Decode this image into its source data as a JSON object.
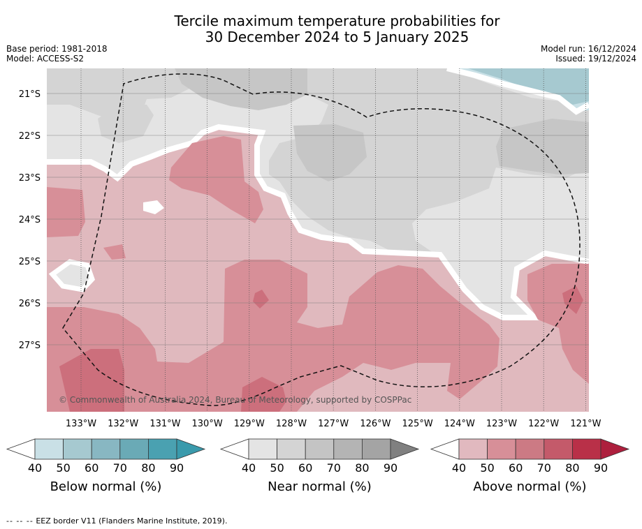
{
  "title": {
    "line1": "Tercile maximum temperature probabilities for",
    "line2": "30 December 2024 to 5 January 2025"
  },
  "meta": {
    "base_period": "Base period: 1981-2018",
    "model": "Model: ACCESS-S2",
    "model_run": "Model run: 16/12/2024",
    "issued": "Issued: 19/12/2024"
  },
  "copyright": "© Commonwealth of Australia 2024, Bureau of Meteorology, supported by COSPPac",
  "axes": {
    "lat_labels": [
      "21°S",
      "22°S",
      "23°S",
      "24°S",
      "25°S",
      "26°S",
      "27°S"
    ],
    "lon_labels": [
      "133°W",
      "132°W",
      "131°W",
      "130°W",
      "129°W",
      "128°W",
      "127°W",
      "126°W",
      "125°W",
      "124°W",
      "123°W",
      "122°W",
      "121°W"
    ]
  },
  "legends": [
    {
      "label": "Below normal (%)",
      "ticks": [
        "40",
        "50",
        "60",
        "70",
        "80",
        "90"
      ],
      "colors": [
        "#ffffff",
        "#c9e0e6",
        "#a6c9d0",
        "#88b7c2",
        "#6aaab6",
        "#4aa1b1",
        "#3a9aac"
      ]
    },
    {
      "label": "Near normal (%)",
      "ticks": [
        "40",
        "50",
        "60",
        "70",
        "80",
        "90"
      ],
      "colors": [
        "#ffffff",
        "#e4e4e4",
        "#d4d4d4",
        "#c4c4c4",
        "#b4b4b4",
        "#a4a4a4",
        "#808080"
      ]
    },
    {
      "label": "Above normal (%)",
      "ticks": [
        "40",
        "50",
        "60",
        "70",
        "80",
        "90"
      ],
      "colors": [
        "#ffffff",
        "#e1b9bf",
        "#d78f98",
        "#cc7a84",
        "#c45a6a",
        "#b93048",
        "#ad1f3d"
      ]
    }
  ],
  "footer": {
    "dash": "--  --  --",
    "text": "EEZ border V11 (Flanders Marine Institute, 2019)."
  }
}
